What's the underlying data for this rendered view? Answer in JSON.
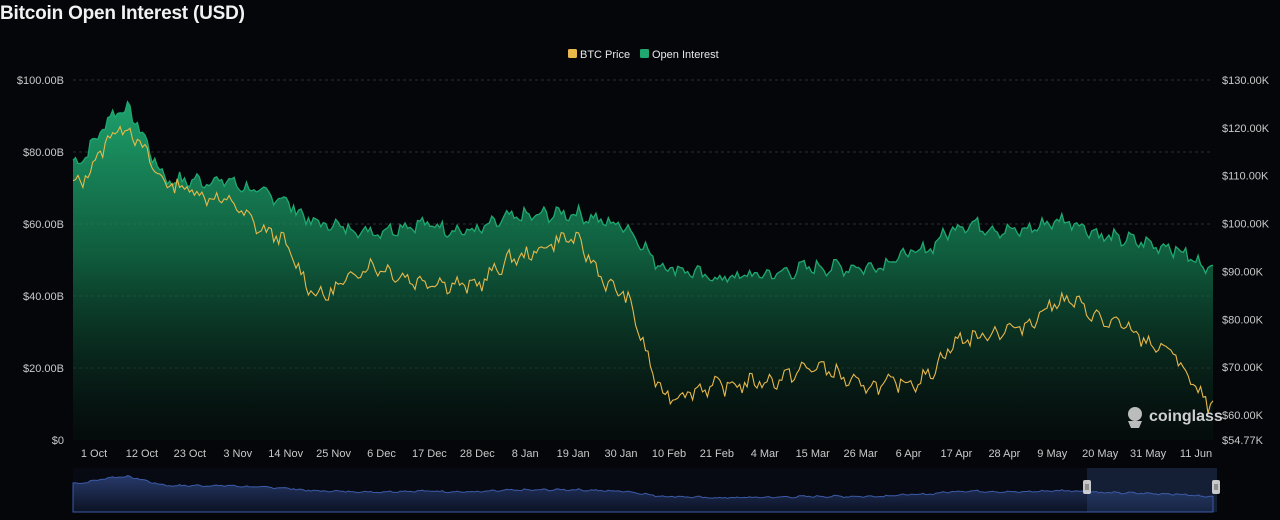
{
  "title": "Bitcoin Open Interest (USD)",
  "watermark": "coinglass",
  "colors": {
    "background": "#05060a",
    "open_interest": "#1fa971",
    "btc_price": "#e8b84a",
    "grid": "#2a2d33",
    "navigator": "#3b5ba8"
  },
  "chart_data": {
    "type": "area",
    "legend": [
      "BTC Price",
      "Open Interest"
    ],
    "x": [
      "1 Oct",
      "12 Oct",
      "23 Oct",
      "3 Nov",
      "14 Nov",
      "25 Nov",
      "6 Dec",
      "17 Dec",
      "28 Dec",
      "8 Jan",
      "19 Jan",
      "30 Jan",
      "10 Feb",
      "21 Feb",
      "4 Mar",
      "15 Mar",
      "26 Mar",
      "6 Apr",
      "17 Apr",
      "28 Apr",
      "9 May",
      "20 May",
      "31 May",
      "11 Jun"
    ],
    "y_left": {
      "label": "",
      "ticks": [
        "$0",
        "$20.00B",
        "$40.00B",
        "$60.00B",
        "$80.00B",
        "$100.00B"
      ],
      "ylim": [
        0,
        100
      ]
    },
    "y_right": {
      "label": "",
      "ticks": [
        "$54.77K",
        "$60.00K",
        "$70.00K",
        "$80.00K",
        "$90.00K",
        "$100.00K",
        "$110.00K",
        "$120.00K",
        "$130.00K"
      ],
      "ylim": [
        54.77,
        130
      ]
    },
    "series": [
      {
        "name": "Open Interest",
        "axis": "left",
        "unit": "B USD",
        "values": [
          77,
          92,
          72,
          72,
          68,
          60,
          58,
          60,
          58,
          62,
          63,
          60,
          48,
          45,
          46,
          48,
          48,
          52,
          60,
          58,
          61,
          56,
          54,
          48
        ]
      },
      {
        "name": "BTC Price",
        "axis": "right",
        "unit": "K USD",
        "values": [
          108,
          120,
          108,
          105,
          98,
          85,
          91,
          88,
          87,
          93,
          97,
          86,
          64,
          66,
          67,
          70,
          66,
          67,
          76,
          78,
          84,
          79,
          74,
          62
        ]
      }
    ],
    "grid": true,
    "legend_position": "top-center"
  }
}
